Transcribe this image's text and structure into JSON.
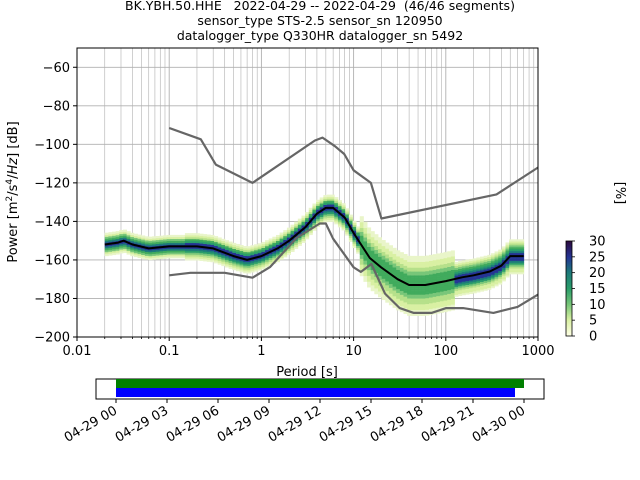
{
  "title": {
    "line1": "BK.YBH.50.HHE   2022-04-29 -- 2022-04-29  (46/46 segments)",
    "line2": "sensor_type STS-2.5 sensor_sn 120950",
    "line3": "datalogger_type Q330HR datalogger_sn 5492"
  },
  "colorbar": {
    "label": "[%]",
    "ticks": [
      "0",
      "5",
      "10",
      "15",
      "20",
      "25",
      "30"
    ],
    "range": [
      0,
      30
    ]
  },
  "colors": {
    "mode_line": "#000000",
    "noise_models": "#666666",
    "grid": "#b0b0b0",
    "coverage_data": "#008000",
    "coverage_gaps": "#0000ff"
  },
  "timeline": {
    "tick_labels": [
      "04-29 00",
      "04-29 03",
      "04-29 06",
      "04-29 09",
      "04-29 12",
      "04-29 15",
      "04-29 18",
      "04-29 21",
      "04-30 00"
    ]
  },
  "chart_data": {
    "type": "heatmap",
    "xlabel": "Period [s]",
    "ylabel": "Power [m2/s4/Hz] [dB]",
    "xscale": "log",
    "xlim": [
      0.01,
      1000
    ],
    "ylim": [
      -200,
      -50
    ],
    "x_tick_labels": [
      "0.01",
      "0.1",
      "1",
      "10",
      "100",
      "1000"
    ],
    "y_tick_labels": [
      "-200",
      "-180",
      "-160",
      "-140",
      "-120",
      "-100",
      "-80",
      "-60"
    ],
    "grid": true,
    "mode": {
      "period": [
        0.02,
        0.028,
        0.032,
        0.04,
        0.06,
        0.1,
        0.2,
        0.3,
        0.5,
        0.7,
        1,
        1.5,
        2,
        3,
        4,
        5,
        6,
        8,
        10,
        15,
        20,
        30,
        40,
        60,
        100,
        150,
        200,
        300,
        400,
        500,
        700
      ],
      "power": [
        -152,
        -151,
        -150,
        -152,
        -154,
        -153,
        -153,
        -154,
        -158,
        -160,
        -158,
        -154,
        -150,
        -143,
        -136,
        -133,
        -133,
        -138,
        -146,
        -159,
        -164,
        -170,
        -173,
        -173,
        -171,
        -169,
        -168,
        -166,
        -163,
        -158,
        -158
      ]
    },
    "nhnm": {
      "period": [
        0.1,
        0.22,
        0.32,
        0.8,
        3.8,
        4.6,
        6.3,
        7.9,
        10,
        15.4,
        20,
        354.8,
        1000
      ],
      "power": [
        -91.5,
        -97.4,
        -110.5,
        -120,
        -98,
        -96.5,
        -101,
        -105,
        -113.5,
        -120,
        -138.5,
        -126,
        -112
      ]
    },
    "nlnm": {
      "period": [
        0.1,
        0.17,
        0.4,
        0.8,
        1.24,
        2.4,
        4.3,
        5,
        6,
        10,
        12,
        15.6,
        21.9,
        31.6,
        45,
        70,
        101,
        154,
        328,
        600,
        1000
      ],
      "power": [
        -168,
        -166.7,
        -166.7,
        -169.2,
        -163.7,
        -148.6,
        -141.1,
        -141.1,
        -149,
        -163.8,
        -166.2,
        -162.1,
        -177.5,
        -185,
        -187.5,
        -187.5,
        -185,
        -185,
        -187.5,
        -184.4,
        -178
      ]
    }
  }
}
